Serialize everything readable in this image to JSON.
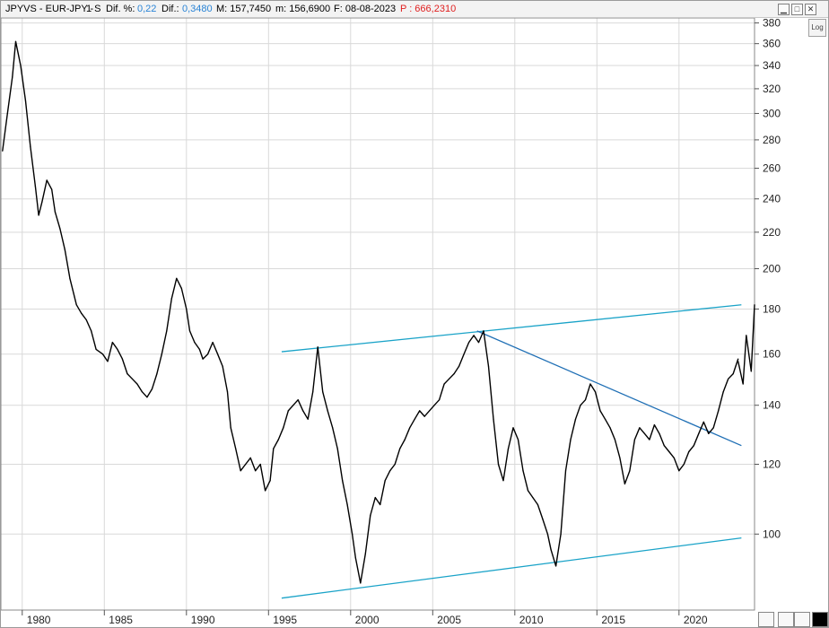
{
  "header": {
    "symbol": "JPYVS - EUR-JPY -",
    "period": "1 S",
    "dif_pct_label": "Dif. %:",
    "dif_pct_value": "0,22",
    "dif_label": "Dif.:",
    "dif_value": "0,3480",
    "m_value": "M: 157,7450",
    "m2_value": "m: 156,6900",
    "f_value": "F: 08-08-2023",
    "p_value": "P : 666,2310"
  },
  "controls": {
    "log_label": "Log",
    "minimize": "▁",
    "maximize": "□",
    "close": "✕"
  },
  "colors": {
    "price_line": "#000000",
    "channel_line": "#1aa3c8",
    "trend_line": "#1f6fb5",
    "grid": "#d9d9d9"
  },
  "chart_data": {
    "type": "line",
    "scale": "log",
    "ylim": [
      82,
      385
    ],
    "xlim": [
      1978.7,
      2024.6
    ],
    "y_ticks": [
      100,
      120,
      140,
      160,
      180,
      200,
      220,
      240,
      260,
      280,
      300,
      320,
      340,
      360,
      380
    ],
    "x_ticks": [
      1980,
      1985,
      1990,
      1995,
      2000,
      2005,
      2010,
      2015,
      2020
    ],
    "x_tick_labels": [
      "1980",
      "1985",
      "1990",
      "1995",
      "2000",
      "2005",
      "2010",
      "2015",
      "2020"
    ],
    "grid": true,
    "series": [
      {
        "x": [
          1978.8,
          1979.1,
          1979.4,
          1979.6,
          1979.9,
          1980.2,
          1980.5,
          1980.8,
          1981.0,
          1981.2,
          1981.5,
          1981.8,
          1982.0,
          1982.3,
          1982.6,
          1982.9,
          1983.3,
          1983.6,
          1983.9,
          1984.2,
          1984.5,
          1984.9,
          1985.2,
          1985.5,
          1985.8,
          1986.1,
          1986.4,
          1986.7,
          1987.0,
          1987.3,
          1987.6,
          1987.9,
          1988.2,
          1988.5,
          1988.8,
          1989.1,
          1989.4,
          1989.7,
          1990.0,
          1990.2,
          1990.5,
          1990.8,
          1991.0,
          1991.3,
          1991.6,
          1991.9,
          1992.2,
          1992.5,
          1992.7,
          1993.0,
          1993.3,
          1993.6,
          1993.9,
          1994.2,
          1994.5,
          1994.8,
          1995.1,
          1995.3,
          1995.6,
          1995.9,
          1996.2,
          1996.5,
          1996.8,
          1997.1,
          1997.4,
          1997.7,
          1998.0,
          1998.3,
          1998.6,
          1998.9,
          1999.2,
          1999.5,
          1999.8,
          2000.1,
          2000.3,
          2000.6,
          2000.9,
          2001.2,
          2001.5,
          2001.8,
          2002.1,
          2002.4,
          2002.7,
          2003.0,
          2003.3,
          2003.6,
          2003.9,
          2004.2,
          2004.5,
          2004.8,
          2005.1,
          2005.4,
          2005.7,
          2006.0,
          2006.3,
          2006.6,
          2006.9,
          2007.2,
          2007.5,
          2007.8,
          2008.1,
          2008.4,
          2008.7,
          2009.0,
          2009.3,
          2009.6,
          2009.9,
          2010.2,
          2010.5,
          2010.8,
          2011.1,
          2011.4,
          2011.7,
          2012.0,
          2012.2,
          2012.5,
          2012.8,
          2013.1,
          2013.4,
          2013.7,
          2014.0,
          2014.3,
          2014.6,
          2014.9,
          2015.2,
          2015.5,
          2015.8,
          2016.1,
          2016.4,
          2016.7,
          2017.0,
          2017.3,
          2017.6,
          2017.9,
          2018.2,
          2018.5,
          2018.8,
          2019.1,
          2019.4,
          2019.7,
          2020.0,
          2020.3,
          2020.6,
          2020.9,
          2021.2,
          2021.5,
          2021.8,
          2022.1,
          2022.4,
          2022.7,
          2023.0,
          2023.3,
          2023.6
        ],
        "values": [
          272,
          300,
          330,
          362,
          340,
          310,
          275,
          248,
          230,
          238,
          252,
          246,
          232,
          222,
          210,
          195,
          182,
          178,
          175,
          170,
          162,
          160,
          157,
          165,
          162,
          158,
          152,
          150,
          148,
          145,
          143,
          146,
          152,
          160,
          170,
          185,
          195,
          190,
          180,
          170,
          165,
          162,
          158,
          160,
          165,
          160,
          155,
          145,
          132,
          125,
          118,
          120,
          122,
          118,
          120,
          112,
          115,
          125,
          128,
          132,
          138,
          140,
          142,
          138,
          135,
          145,
          163,
          145,
          138,
          132,
          125,
          115,
          108,
          100,
          94,
          88,
          95,
          105,
          110,
          108,
          115,
          118,
          120,
          125,
          128,
          132,
          135,
          138,
          136,
          138,
          140,
          142,
          148,
          150,
          152,
          155,
          160,
          165,
          168,
          165,
          170,
          155,
          135,
          120,
          115,
          125,
          132,
          128,
          118,
          112,
          110,
          108,
          104,
          100,
          96,
          92,
          100,
          118,
          128,
          135,
          140,
          142,
          148,
          145,
          138,
          135,
          132,
          128,
          122,
          114,
          118,
          128,
          132,
          130,
          128,
          133,
          130,
          126,
          124,
          122,
          118,
          120,
          124,
          126,
          130,
          134,
          130,
          132,
          138,
          145,
          150,
          152,
          158
        ]
      },
      {
        "x": [
          2023.6,
          2023.9,
          2024.1,
          2024.4,
          2024.6
        ],
        "values": [
          157,
          148,
          168,
          153,
          182
        ]
      }
    ],
    "annotations": [
      {
        "type": "channel-upper",
        "x": [
          1995.8,
          2023.8
        ],
        "y": [
          161,
          182
        ]
      },
      {
        "type": "channel-lower",
        "x": [
          1995.8,
          2023.8
        ],
        "y": [
          84.6,
          99
        ]
      },
      {
        "type": "trendline",
        "x": [
          2007.7,
          2023.8
        ],
        "y": [
          170,
          126
        ]
      }
    ]
  }
}
